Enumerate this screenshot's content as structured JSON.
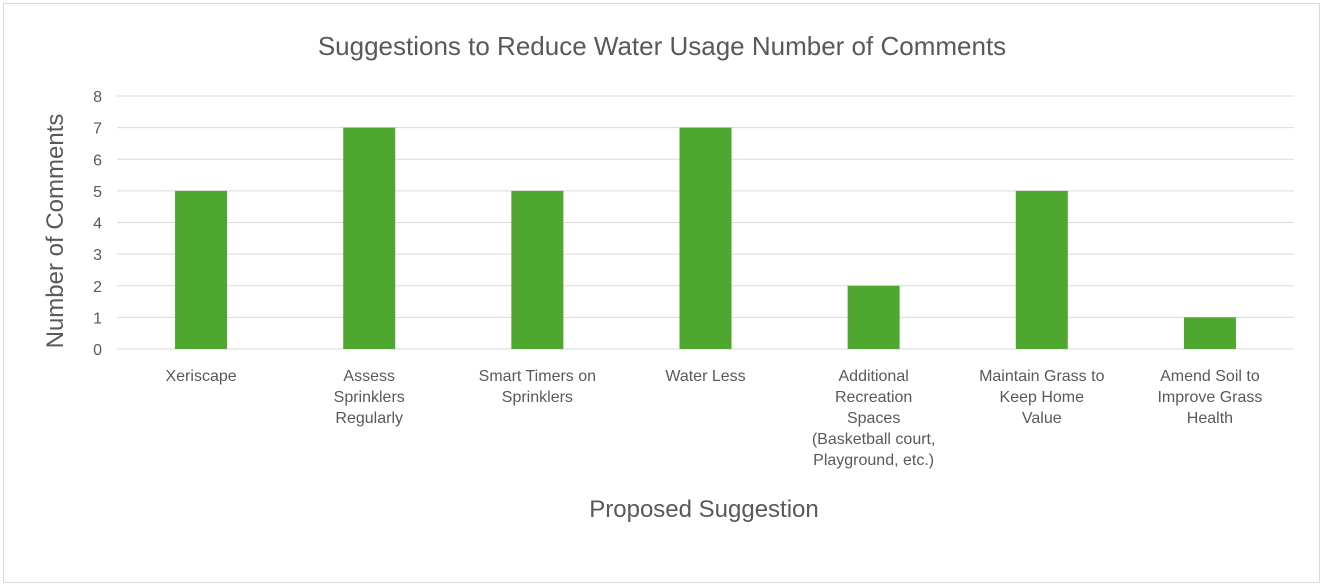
{
  "chart_data": {
    "type": "bar",
    "title": "Suggestions to Reduce Water Usage Number of Comments",
    "xlabel": "Proposed Suggestion",
    "ylabel": "Number of Comments",
    "ylim": [
      0,
      8
    ],
    "yticks": [
      0,
      1,
      2,
      3,
      4,
      5,
      6,
      7,
      8
    ],
    "grid": true,
    "bar_color": "#4ea72e",
    "categories": [
      [
        "Xeriscape"
      ],
      [
        "Assess",
        "Sprinklers",
        "Regularly"
      ],
      [
        "Smart Timers on",
        "Sprinklers"
      ],
      [
        "Water Less"
      ],
      [
        "Additional",
        "Recreation",
        "Spaces",
        "(Basketball court,",
        "Playground, etc.)"
      ],
      [
        "Maintain Grass to",
        "Keep Home",
        "Value"
      ],
      [
        "Amend Soil to",
        "Improve Grass",
        "Health"
      ]
    ],
    "values": [
      5,
      7,
      5,
      7,
      2,
      5,
      1
    ]
  }
}
